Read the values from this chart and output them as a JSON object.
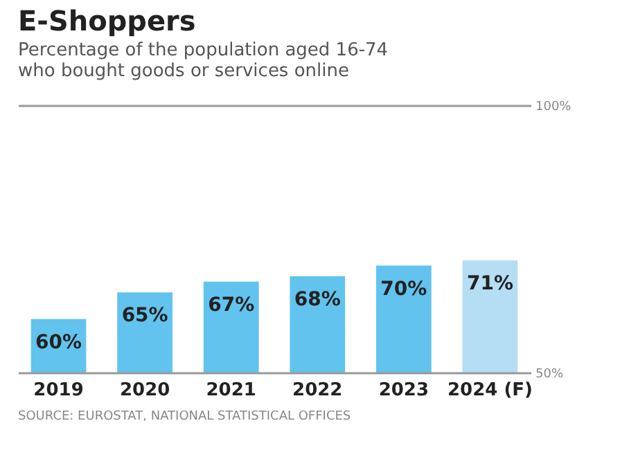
{
  "chart_data": {
    "type": "bar",
    "title": "E-Shoppers",
    "subtitle": [
      "Percentage of the population aged 16-74",
      "who bought goods or services online"
    ],
    "categories": [
      "2019",
      "2020",
      "2021",
      "2022",
      "2023",
      "2024 (F)"
    ],
    "values": [
      60,
      65,
      67,
      68,
      70,
      71
    ],
    "colors": [
      "#62c3ee",
      "#62c3ee",
      "#62c3ee",
      "#62c3ee",
      "#62c3ee",
      "#b5def5"
    ],
    "value_labels": [
      "60%",
      "65%",
      "67%",
      "68%",
      "70%",
      "71%"
    ],
    "ylim": [
      50,
      100
    ],
    "yticks": [
      {
        "value": 50,
        "label": "50%"
      },
      {
        "value": 100,
        "label": "100%"
      }
    ],
    "annotations": [
      "SOURCE: EUROSTAT, NATIONAL STATISTICAL OFFICES"
    ]
  }
}
